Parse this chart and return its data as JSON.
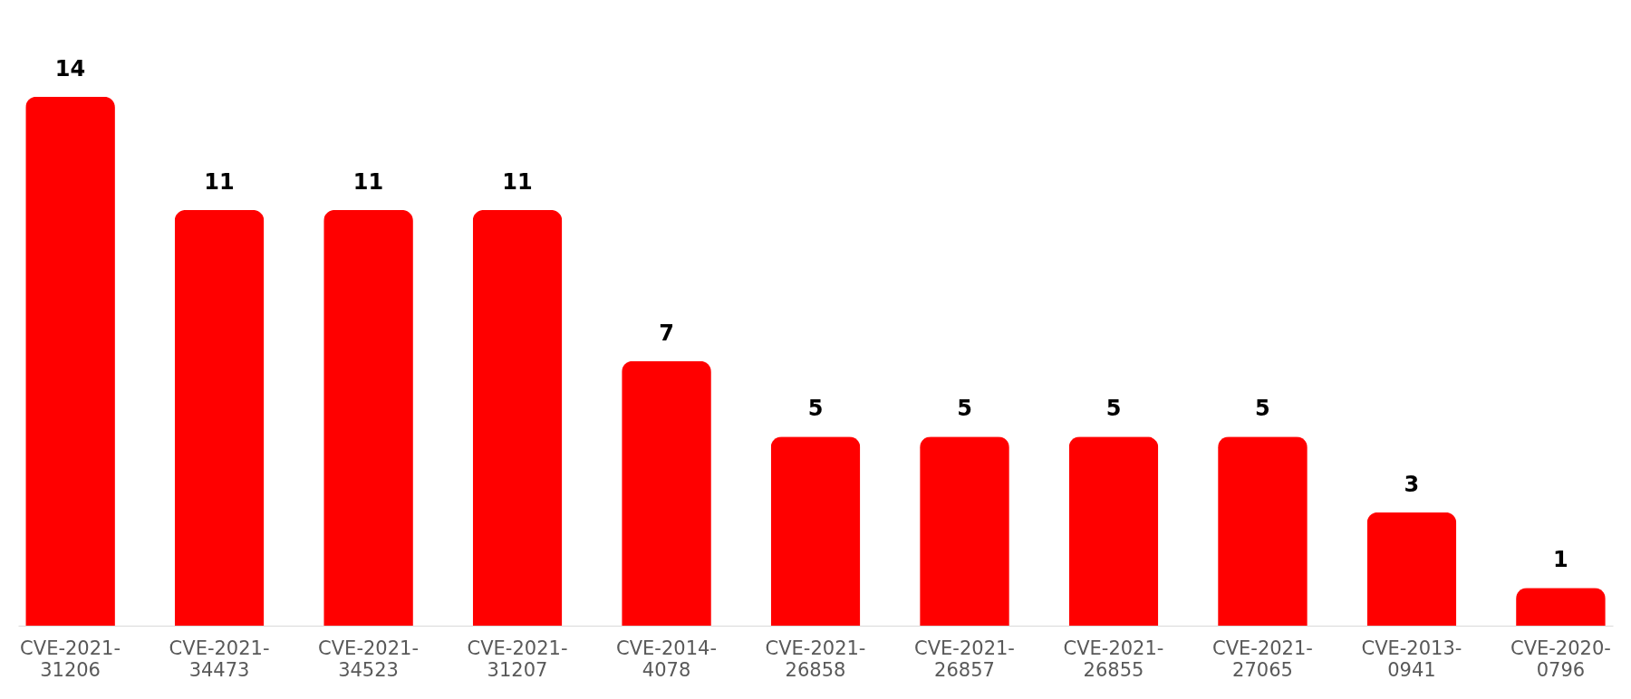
{
  "chart_data": {
    "type": "bar",
    "categories": [
      "CVE-2021-31206",
      "CVE-2021-34473",
      "CVE-2021-34523",
      "CVE-2021-31207",
      "CVE-2014-4078",
      "CVE-2021-26858",
      "CVE-2021-26857",
      "CVE-2021-26855",
      "CVE-2021-27065",
      "CVE-2013-0941",
      "CVE-2020-0796"
    ],
    "values": [
      14,
      11,
      11,
      11,
      7,
      5,
      5,
      5,
      5,
      3,
      1
    ],
    "color": "#ff0000",
    "data_labels": true
  }
}
